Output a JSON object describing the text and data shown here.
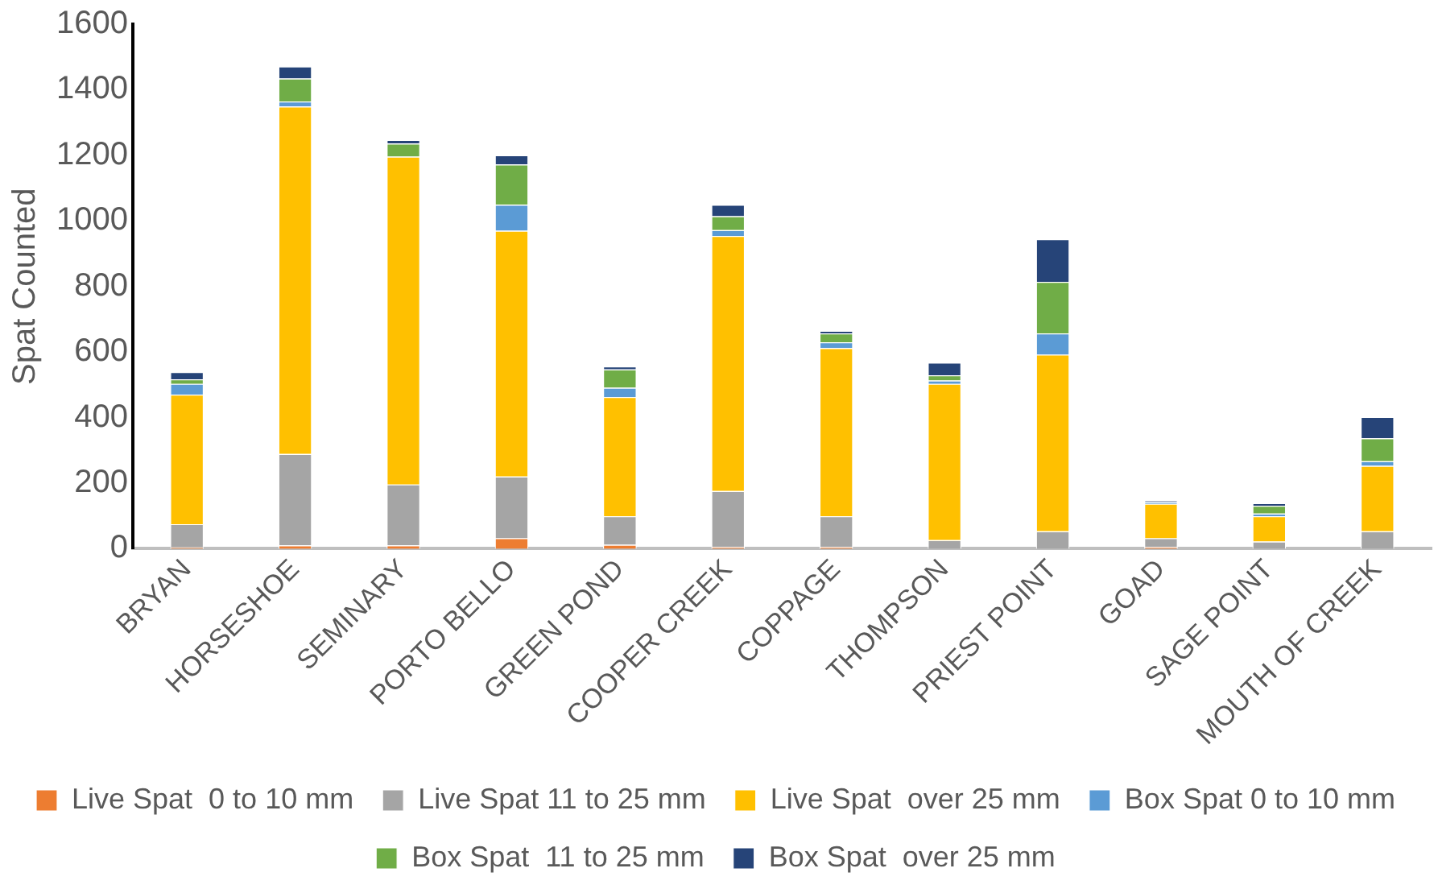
{
  "chart_data": {
    "type": "bar",
    "stacked": true,
    "ylabel": "Spat Counted",
    "categories": [
      "BRYAN",
      "HORSESHOE",
      "SEMINARY",
      "PORTO BELLO",
      "GREEN POND",
      "COOPER CREEK",
      "COPPAGE",
      "THOMPSON",
      "PRIEST POINT",
      "GOAD",
      "SAGE POINT",
      "MOUTH OF CREEK"
    ],
    "ylim": [
      0,
      1600
    ],
    "yticks": [
      0,
      200,
      400,
      600,
      800,
      1000,
      1200,
      1400,
      1600
    ],
    "grid": false,
    "legend": "bottom",
    "series": [
      {
        "name": "Live Spat  0 to 10 mm",
        "color": "#ed7d31",
        "values": [
          5,
          10,
          10,
          32,
          12,
          6,
          6,
          0,
          0,
          6,
          null,
          null
        ]
      },
      {
        "name": "Live Spat 11 to 25 mm",
        "color": "#a5a5a5",
        "values": [
          70,
          279,
          186,
          188,
          87,
          170,
          93,
          26,
          53,
          26,
          22,
          53
        ]
      },
      {
        "name": "Live Spat  over 25 mm",
        "color": "#ffc000",
        "values": [
          395,
          1060,
          1000,
          750,
          364,
          778,
          513,
          477,
          539,
          105,
          77,
          200
        ]
      },
      {
        "name": "Box Spat 0 to 10 mm",
        "color": "#5b9bd5",
        "values": [
          33,
          15,
          null,
          79,
          28,
          18,
          18,
          10,
          65,
          6,
          8,
          14
        ]
      },
      {
        "name": "Box Spat  11 to 25 mm",
        "color": "#70ad47",
        "values": [
          14,
          70,
          40,
          123,
          56,
          42,
          27,
          16,
          157,
          null,
          24,
          70
        ]
      },
      {
        "name": "Box Spat  over 25 mm",
        "color": "#264478",
        "values": [
          22,
          37,
          11,
          28,
          9,
          35,
          8,
          39,
          130,
          3,
          8,
          65
        ]
      }
    ]
  }
}
